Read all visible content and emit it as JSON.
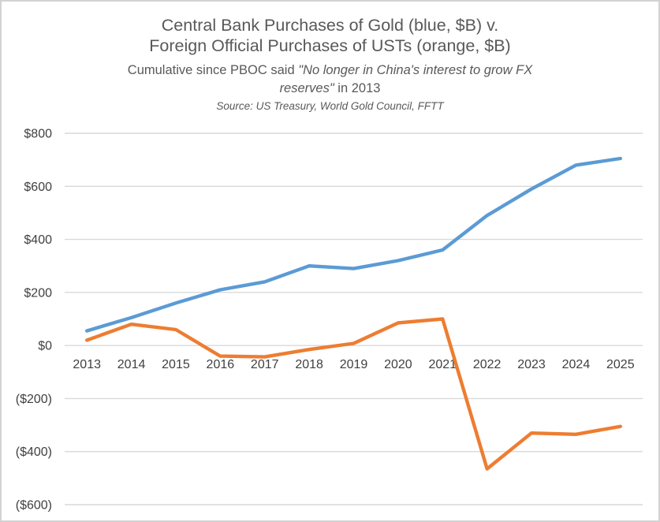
{
  "title": {
    "line1": "Central Bank Purchases of Gold (blue, $B) v.",
    "line2": "Foreign Official Purchases of USTs (orange, $B)"
  },
  "subtitle": {
    "prefix": "Cumulative since PBOC said ",
    "quote_line1": "\"No longer in China's interest to grow FX",
    "quote_line2": "reserves\"",
    "suffix": " in 2013"
  },
  "source": "Source: US Treasury, World Gold Council, FFTT",
  "colors": {
    "gold_line": "#5B9BD5",
    "ust_line": "#ED7D31",
    "gridline": "#D9D9D9",
    "axis_text": "#404040",
    "title_text": "#595959",
    "page_border": "#D2D2D2"
  },
  "chart_data": {
    "type": "line",
    "x": [
      "2013",
      "2014",
      "2015",
      "2016",
      "2017",
      "2018",
      "2019",
      "2020",
      "2021",
      "2022",
      "2023",
      "2024",
      "2025"
    ],
    "series": [
      {
        "name": "Central Bank Purchases of Gold ($B, blue)",
        "color": "#5B9BD5",
        "values": [
          55,
          105,
          160,
          210,
          240,
          300,
          290,
          320,
          360,
          490,
          590,
          680,
          705
        ]
      },
      {
        "name": "Foreign Official Purchases of USTs ($B, orange)",
        "color": "#ED7D31",
        "values": [
          20,
          80,
          60,
          -40,
          -43,
          -15,
          8,
          85,
          100,
          -465,
          -330,
          -335,
          -305
        ]
      }
    ],
    "ylim": [
      -600,
      800
    ],
    "yticks": [
      {
        "value": 800,
        "label": "$800"
      },
      {
        "value": 600,
        "label": "$600"
      },
      {
        "value": 400,
        "label": "$400"
      },
      {
        "value": 200,
        "label": "$200"
      },
      {
        "value": 0,
        "label": "$0"
      },
      {
        "value": -200,
        "label": "($200)"
      },
      {
        "value": -400,
        "label": "($400)"
      },
      {
        "value": -600,
        "label": "($600)"
      }
    ],
    "grid": true,
    "legend_position": "none",
    "x_axis_label_position": "below zero line"
  }
}
